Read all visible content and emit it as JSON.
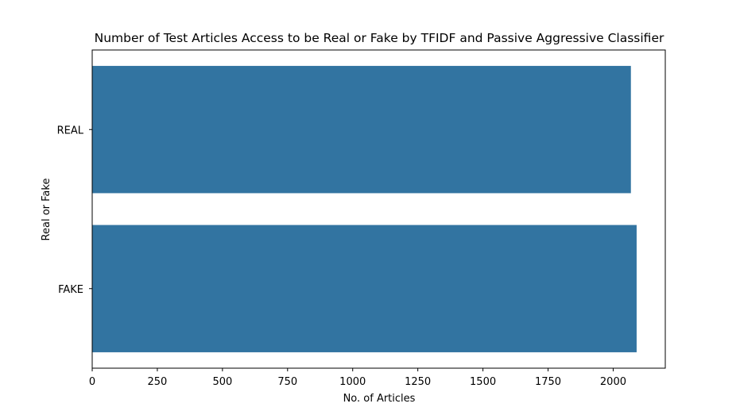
{
  "chart_data": {
    "type": "bar",
    "orientation": "horizontal",
    "title": "Number of Test Articles Access to be Real or Fake by TFIDF and Passive Aggressive Classifier",
    "xlabel": "No. of Articles",
    "ylabel": "Real or Fake",
    "categories": [
      "REAL",
      "FAKE"
    ],
    "values": [
      2068,
      2090
    ],
    "xlim": [
      0,
      2200
    ],
    "xticks": [
      0,
      250,
      500,
      750,
      1000,
      1250,
      1500,
      1750,
      2000
    ],
    "grid": false,
    "legend": "none",
    "bar_color": "#3274a1"
  }
}
